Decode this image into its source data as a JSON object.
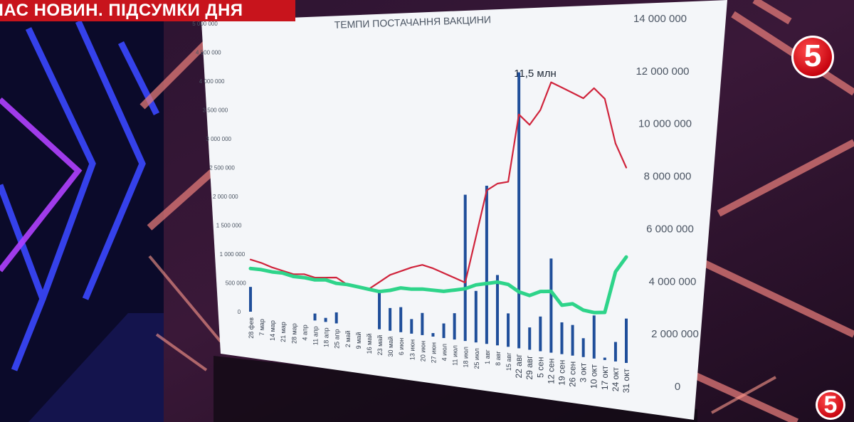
{
  "overlay": {
    "ticker": "ЧАС НОВИН. ПІДСУМКИ ДНЯ",
    "channel_logo": "5",
    "colors": {
      "ticker_bg": "#c8141c",
      "logo_red": "#d40012"
    }
  },
  "chart_data": {
    "type": "bar+line",
    "title": "ТЕМПИ ПОСТАЧАННЯ ВАКЦИНИ",
    "annotation": "11,5 млн",
    "left_axis": {
      "min": 0,
      "max": 5000000,
      "ticks": [
        "0",
        "500 000",
        "1 000 000",
        "1 500 000",
        "2 000 000",
        "2 500 000",
        "3 000 000",
        "3 500 000",
        "4 000 000",
        "4 500 000",
        "5 000 000"
      ]
    },
    "right_axis": {
      "min": 0,
      "max": 14000000,
      "ticks": [
        "0",
        "2 000 000",
        "4 000 000",
        "6 000 000",
        "8 000 000",
        "10 000 000",
        "12 000 000",
        "14 000 000"
      ]
    },
    "categories": [
      "28 фев",
      "7 мар",
      "14 мар",
      "21 мар",
      "28 мар",
      "4 апр",
      "11 апр",
      "18 апр",
      "25 апр",
      "2 май",
      "9 май",
      "16 май",
      "23 май",
      "30 май",
      "6 июн",
      "13 июн",
      "20 июн",
      "27 июн",
      "4 июл",
      "11 июл",
      "18 июл",
      "25 июл",
      "1 авг",
      "8 авг",
      "15 авг",
      "22 авг",
      "29 авг",
      "5 сен",
      "12 сен",
      "19 сен",
      "26 сен",
      "3 окт",
      "10 окт",
      "17 окт",
      "24 окт",
      "31 окт"
    ],
    "series": [
      {
        "type": "bar",
        "axis": "left",
        "color": "#1f4e9a",
        "values": [
          430000,
          0,
          0,
          0,
          0,
          0,
          120000,
          70000,
          190000,
          0,
          0,
          0,
          680000,
          390000,
          430000,
          250000,
          380000,
          60000,
          250000,
          450000,
          2500000,
          880000,
          2700000,
          1200000,
          570000,
          4700000,
          380000,
          590000,
          1600000,
          540000,
          520000,
          320000,
          730000,
          40000,
          330000,
          750000
        ]
      },
      {
        "type": "line",
        "axis": "right",
        "color": "#d0243c",
        "values": [
          3350000,
          3250000,
          3100000,
          3000000,
          2900000,
          2950000,
          2850000,
          2900000,
          2950000,
          2700000,
          2650000,
          2600000,
          2950000,
          3300000,
          3500000,
          3700000,
          3850000,
          3750000,
          3600000,
          3450000,
          3300000,
          5200000,
          7100000,
          7400000,
          7500000,
          10200000,
          9800000,
          10400000,
          11500000,
          11300000,
          11100000,
          10900000,
          11300000,
          10900000,
          9200000,
          8300000
        ]
      },
      {
        "type": "line",
        "axis": "right",
        "color": "#2ed48a",
        "values": [
          2950000,
          2950000,
          2900000,
          2900000,
          2800000,
          2800000,
          2750000,
          2800000,
          2700000,
          2700000,
          2650000,
          2600000,
          2550000,
          2650000,
          2800000,
          2800000,
          2850000,
          2850000,
          2850000,
          2950000,
          3050000,
          3250000,
          3350000,
          3450000,
          3400000,
          3150000,
          3050000,
          3250000,
          3300000,
          2800000,
          2900000,
          2700000,
          2650000,
          2700000,
          4300000,
          4900000
        ]
      }
    ]
  }
}
